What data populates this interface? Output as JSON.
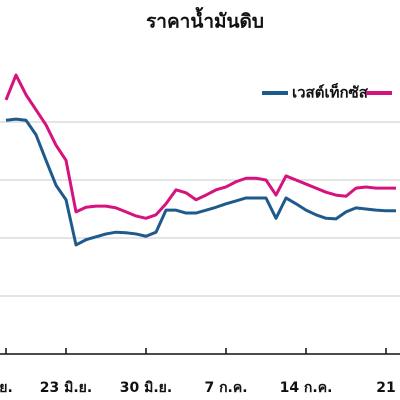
{
  "chart_data": {
    "type": "line",
    "title": "ราคาน้ำมันดิบ",
    "categories": [
      "ย.",
      null,
      null,
      null,
      null,
      null,
      "23 มิ.ย.",
      null,
      null,
      null,
      null,
      null,
      null,
      null,
      "30 มิ.ย.",
      null,
      null,
      null,
      null,
      null,
      null,
      null,
      "7 ก.ค.",
      null,
      null,
      null,
      null,
      null,
      null,
      null,
      "14 ก.ค.",
      null,
      null,
      null,
      null,
      null,
      null,
      null,
      "21",
      null
    ],
    "series": [
      {
        "name": "เวสต์เท็กซัส",
        "color": "#1f5a8c",
        "values": [
          120.3,
          120.5,
          120.3,
          117.8,
          113.4,
          109.1,
          106.6,
          98.8,
          99.7,
          100.2,
          100.7,
          101.0,
          100.9,
          100.7,
          100.3,
          101.0,
          104.8,
          104.8,
          104.3,
          104.3,
          104.8,
          105.3,
          105.9,
          106.4,
          106.9,
          106.9,
          106.9,
          103.4,
          106.9,
          105.9,
          104.8,
          104.0,
          103.4,
          103.3,
          104.5,
          105.2,
          105.0,
          104.8,
          104.7,
          104.7
        ]
      },
      {
        "color": "#d6127e",
        "values": [
          123.8,
          128.1,
          124.7,
          122.1,
          119.5,
          116.0,
          113.4,
          104.5,
          105.3,
          105.5,
          105.5,
          105.2,
          104.5,
          103.8,
          103.4,
          104.0,
          105.9,
          108.3,
          107.8,
          106.6,
          107.4,
          108.3,
          108.8,
          109.7,
          110.3,
          110.3,
          110.0,
          107.4,
          110.7,
          110.0,
          109.3,
          108.6,
          107.9,
          107.4,
          107.2,
          108.6,
          108.8,
          108.6,
          108.6,
          108.6
        ]
      }
    ],
    "ylim": [
      80,
      135
    ],
    "grid_lines": [
      90,
      100,
      110,
      120
    ]
  }
}
